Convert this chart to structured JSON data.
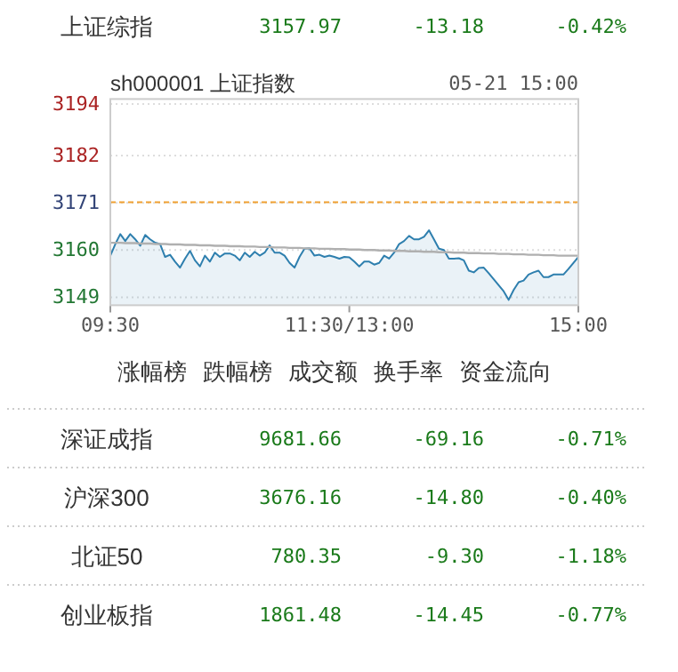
{
  "chart_data": [
    {
      "type": "other",
      "annotations": [
        "上证综指",
        "3157.97",
        "-13.18",
        "-0.42%"
      ]
    },
    {
      "type": "line",
      "title": "sh000001 上证指数",
      "subtitle": "05-21 15:00",
      "categories": [
        "09:30",
        null,
        null,
        null,
        null,
        null,
        null,
        null,
        null,
        null,
        null,
        null,
        null,
        null,
        null,
        null,
        null,
        null,
        null,
        null,
        null,
        null,
        null,
        null,
        null,
        null,
        null,
        null,
        null,
        null,
        null,
        null,
        null,
        null,
        null,
        null,
        null,
        null,
        null,
        null,
        null,
        null,
        null,
        null,
        null,
        null,
        null,
        null,
        "11:30/13:00",
        null,
        null,
        null,
        null,
        null,
        null,
        null,
        null,
        null,
        null,
        null,
        null,
        null,
        null,
        null,
        null,
        null,
        null,
        null,
        null,
        null,
        null,
        null,
        null,
        null,
        null,
        null,
        null,
        null,
        null,
        null,
        null,
        null,
        null,
        null,
        null,
        null,
        null,
        null,
        null,
        null,
        null,
        null,
        null,
        null,
        "15:00"
      ],
      "ylim": [
        3147.15,
        3195.15
      ],
      "yticks": [
        3149,
        3160,
        3171,
        3182,
        3194
      ],
      "grid": "y",
      "ref_lines": [
        {
          "axis": "y",
          "value": 3171.15,
          "color": "#f0a030",
          "line_style": "dashed"
        }
      ],
      "series": [
        {
          "type": "area",
          "color": "#2e7fae",
          "values": [
            3158.7,
            3161.4,
            3163.7,
            3162.1,
            3163.7,
            3162.5,
            3161.0,
            3163.5,
            3162.5,
            3161.7,
            3161.4,
            3158.4,
            3158.9,
            3157.3,
            3155.9,
            3158.0,
            3159.8,
            3157.6,
            3156.2,
            3158.7,
            3157.3,
            3159.4,
            3158.4,
            3159.2,
            3159.2,
            3158.7,
            3157.6,
            3159.4,
            3158.4,
            3159.6,
            3158.7,
            3159.4,
            3161.1,
            3159.4,
            3159.4,
            3158.7,
            3157.0,
            3155.9,
            3158.4,
            3160.3,
            3160.4,
            3158.7,
            3158.9,
            3158.4,
            3158.7,
            3158.4,
            3158.0,
            3158.4,
            3158.3,
            3157.3,
            3156.2,
            3157.3,
            3157.3,
            3156.6,
            3157.0,
            3158.7,
            3158.0,
            3159.4,
            3161.4,
            3162.1,
            3163.3,
            3162.5,
            3162.5,
            3163.1,
            3164.6,
            3162.5,
            3160.3,
            3160.0,
            3158.0,
            3158.0,
            3158.1,
            3157.6,
            3155.2,
            3154.8,
            3155.8,
            3155.9,
            3154.6,
            3153.2,
            3151.8,
            3150.4,
            3148.4,
            3150.7,
            3152.5,
            3152.9,
            3154.3,
            3154.8,
            3155.2,
            3153.7,
            3153.7,
            3154.3,
            3154.3,
            3154.3,
            3155.6,
            3157.0,
            3158.4
          ]
        },
        {
          "type": "line",
          "color": "#b0b0b0",
          "values": [
            3161.7,
            3161.7,
            3161.7,
            3161.6,
            3161.6,
            3161.6,
            3161.5,
            3161.5,
            3161.5,
            3161.4,
            3161.4,
            3161.4,
            3161.3,
            3161.3,
            3161.3,
            3161.2,
            3161.2,
            3161.2,
            3161.1,
            3161.1,
            3161.1,
            3161.0,
            3161.0,
            3161.0,
            3160.9,
            3160.9,
            3160.9,
            3160.8,
            3160.8,
            3160.8,
            3160.7,
            3160.7,
            3160.7,
            3160.6,
            3160.6,
            3160.6,
            3160.5,
            3160.5,
            3160.5,
            3160.4,
            3160.4,
            3160.4,
            3160.3,
            3160.3,
            3160.3,
            3160.2,
            3160.2,
            3160.2,
            3160.1,
            3160.1,
            3160.1,
            3160.0,
            3160.0,
            3160.0,
            3159.9,
            3159.9,
            3159.9,
            3159.8,
            3159.8,
            3159.8,
            3159.7,
            3159.7,
            3159.7,
            3159.6,
            3159.6,
            3159.6,
            3159.5,
            3159.5,
            3159.5,
            3159.4,
            3159.4,
            3159.4,
            3159.3,
            3159.3,
            3159.3,
            3159.2,
            3159.2,
            3159.2,
            3159.1,
            3159.1,
            3159.1,
            3159.0,
            3159.0,
            3159.0,
            3158.9,
            3158.9,
            3158.9,
            3158.8,
            3158.8,
            3158.8,
            3158.7,
            3158.7,
            3158.7,
            3158.7,
            3158.7
          ]
        }
      ]
    },
    {
      "type": "other",
      "annotations": [
        "涨幅榜",
        "跌幅榜",
        "成交额",
        "换手率",
        "资金流向"
      ]
    },
    {
      "type": "other",
      "annotations": [
        "深证成指",
        "9681.66",
        "-69.16",
        "-0.71%"
      ]
    },
    {
      "type": "other",
      "annotations": [
        "沪深300",
        "3676.16",
        "-14.80",
        "-0.40%"
      ]
    },
    {
      "type": "other",
      "annotations": [
        "北证50",
        "780.35",
        "-9.30",
        "-1.18%"
      ]
    },
    {
      "type": "other",
      "annotations": [
        "创业板指",
        "1861.48",
        "-14.45",
        "-0.77%"
      ]
    }
  ]
}
